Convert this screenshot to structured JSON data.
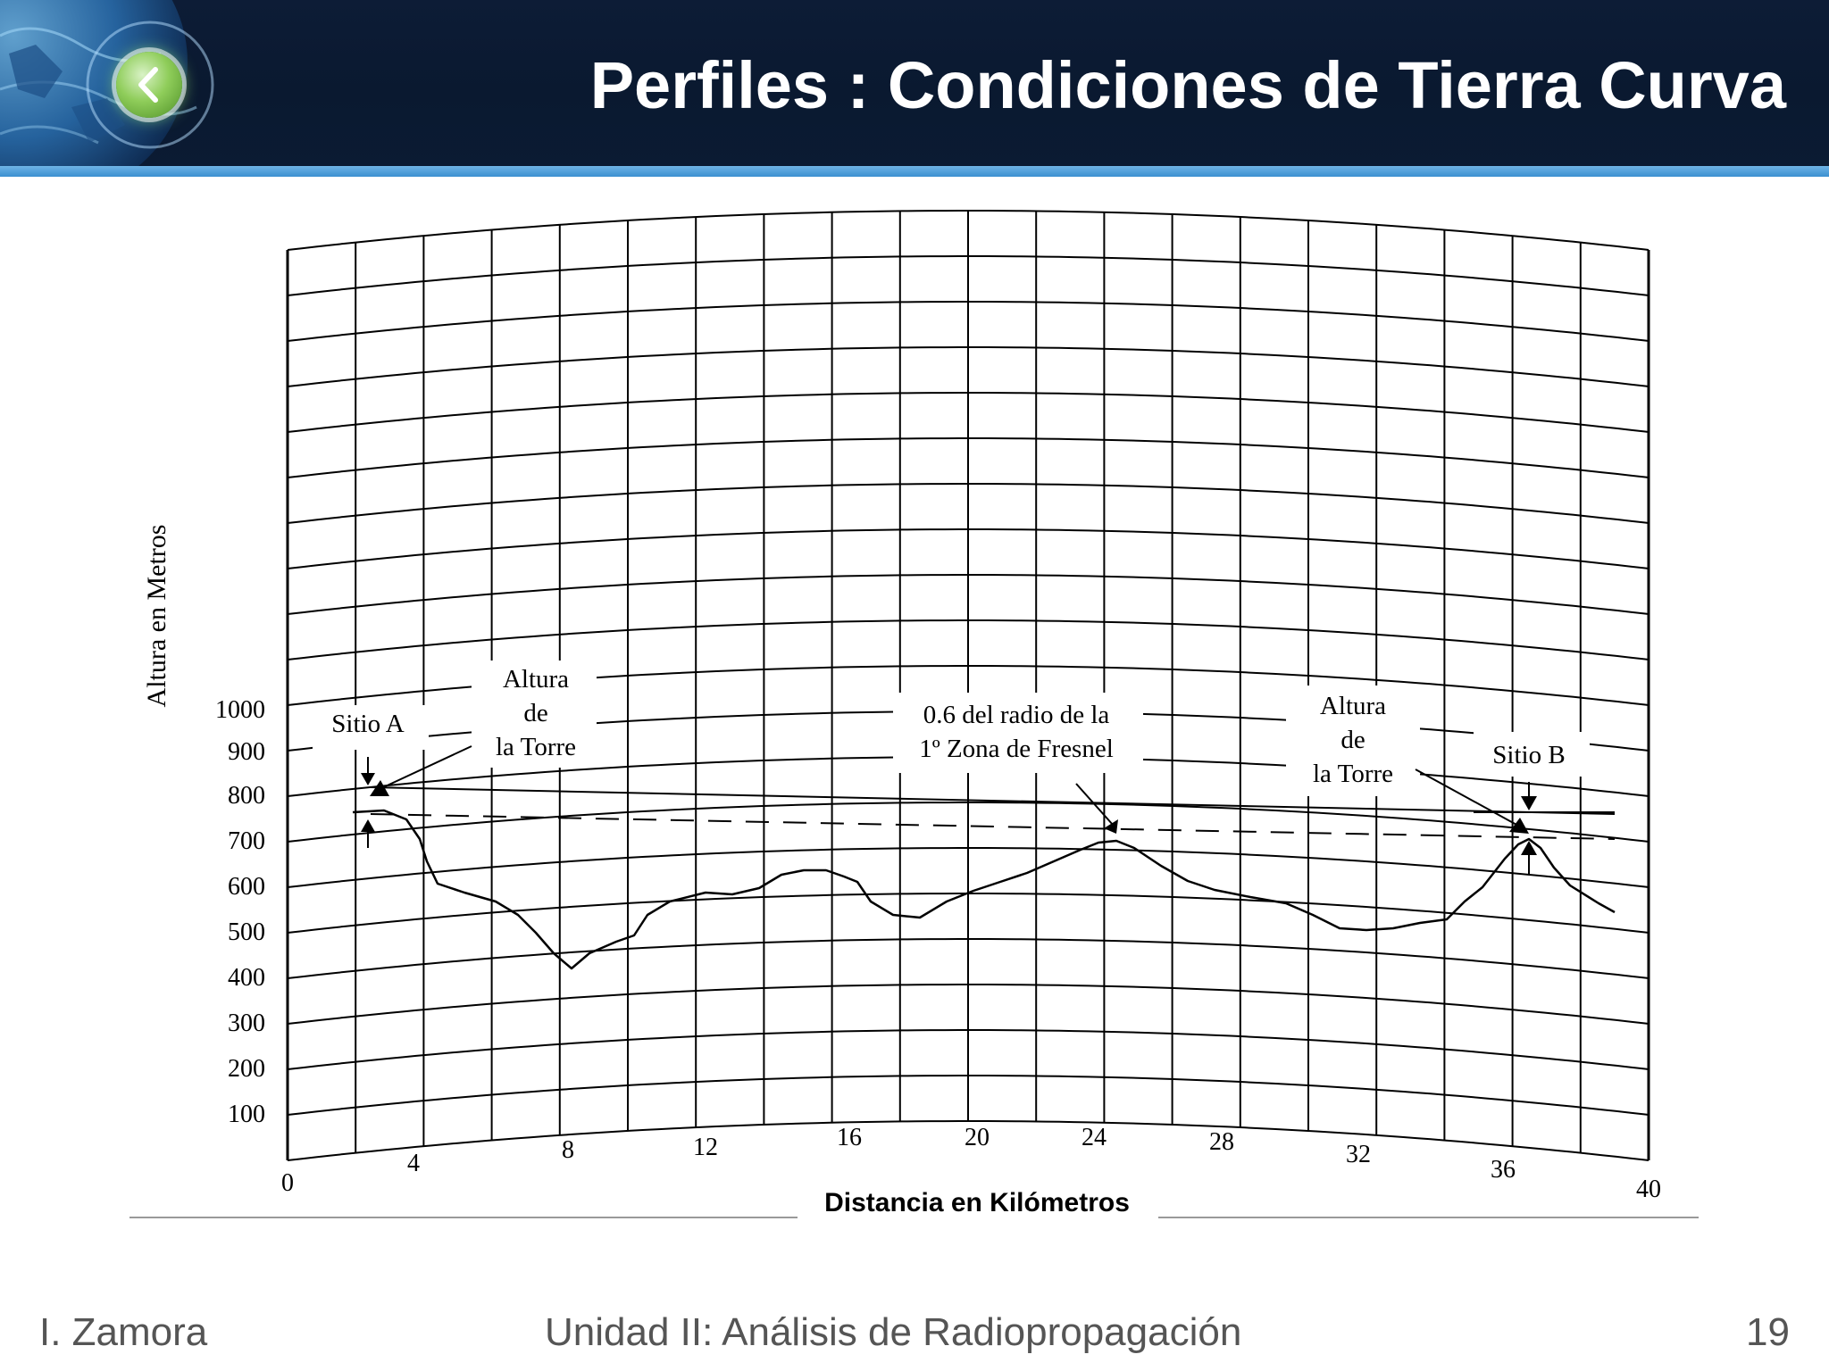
{
  "slide": {
    "title": "Perfiles : Condiciones de Tierra Curva"
  },
  "footer": {
    "author": "I. Zamora",
    "course": "Unidad II: Análisis de Radiopropagación",
    "page_number": "19"
  },
  "colors": {
    "header_bg": "#0b1b33",
    "header_stripe": "#3b8fd0",
    "back_button": "#8fcd5a",
    "grid": "#000000"
  },
  "icons": {
    "back_button": "chevron-left-icon"
  },
  "diagram": {
    "y_axis_title": "Altura en Metros",
    "x_axis_title": "Distancia en Kilómetros",
    "y_ticks": [
      "1000",
      "900",
      "800",
      "700",
      "600",
      "500",
      "400",
      "300",
      "200",
      "100"
    ],
    "x_ticks": [
      "0",
      "4",
      "8",
      "12",
      "16",
      "20",
      "24",
      "28",
      "32",
      "36",
      "40"
    ],
    "labels": {
      "site_a": "Sitio A",
      "site_b": "Sitio B",
      "tower_height_left": [
        "Altura",
        "de",
        "la Torre"
      ],
      "tower_height_right": [
        "Altura",
        "de",
        "la Torre"
      ],
      "fresnel": [
        "0.6 del radio de la",
        "1º Zona de Fresnel"
      ]
    }
  }
}
